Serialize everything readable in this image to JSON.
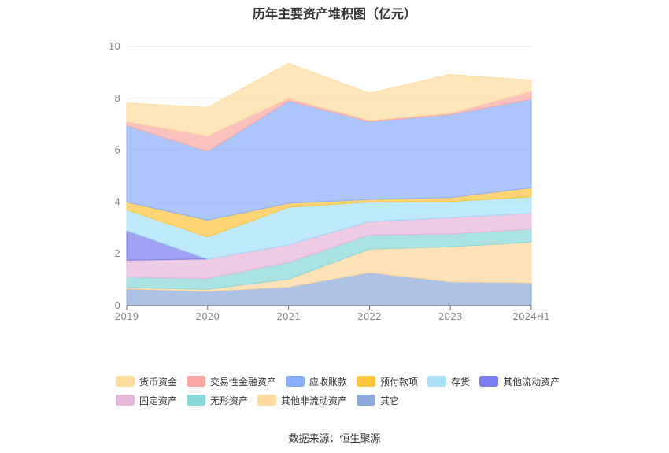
{
  "title": "历年主要资产堆积图（亿元）",
  "source": "数据来源：恒生聚源",
  "chart_data": {
    "type": "area",
    "stacked": true,
    "categories": [
      "2019",
      "2020",
      "2021",
      "2022",
      "2023",
      "2024H1"
    ],
    "ylim": [
      0,
      10
    ],
    "yticks": [
      0,
      2,
      4,
      6,
      8,
      10
    ],
    "grid": true,
    "legend_position": "bottom",
    "series": [
      {
        "name": "其它",
        "color": "#8eaadb",
        "values": [
          0.65,
          0.55,
          0.72,
          1.28,
          0.92,
          0.88
        ]
      },
      {
        "name": "其他非流动资产",
        "color": "#ffd89b",
        "values": [
          0.05,
          0.08,
          0.3,
          0.9,
          1.35,
          1.57
        ]
      },
      {
        "name": "无形资产",
        "color": "#88d8d8",
        "values": [
          0.4,
          0.42,
          0.65,
          0.55,
          0.5,
          0.5
        ]
      },
      {
        "name": "固定资产",
        "color": "#e8b6d9",
        "values": [
          0.65,
          0.75,
          0.68,
          0.52,
          0.63,
          0.62
        ]
      },
      {
        "name": "其他流动资产",
        "color": "#7b7ef0",
        "values": [
          1.15,
          0.0,
          0.0,
          0.0,
          0.0,
          0.0
        ]
      },
      {
        "name": "存货",
        "color": "#a6e0fb",
        "values": [
          0.8,
          0.85,
          1.45,
          0.75,
          0.62,
          0.63
        ]
      },
      {
        "name": "预付款项",
        "color": "#ffc53d",
        "values": [
          0.3,
          0.65,
          0.15,
          0.1,
          0.15,
          0.35
        ]
      },
      {
        "name": "应收账款",
        "color": "#8caefc",
        "values": [
          2.95,
          2.65,
          3.95,
          3.0,
          3.2,
          3.42
        ]
      },
      {
        "name": "交易性金融资产",
        "color": "#fca9a3",
        "values": [
          0.15,
          0.6,
          0.1,
          0.05,
          0.05,
          0.3
        ]
      },
      {
        "name": "货币资金",
        "color": "#ffdc9e",
        "values": [
          0.72,
          1.1,
          1.35,
          1.05,
          1.5,
          0.43
        ]
      }
    ]
  },
  "legend_rows": [
    [
      "货币资金",
      "交易性金融资产",
      "应收账款",
      "预付款项",
      "存货",
      "其他流动资产"
    ],
    [
      "固定资产",
      "无形资产",
      "其他非流动资产",
      "其它"
    ]
  ]
}
